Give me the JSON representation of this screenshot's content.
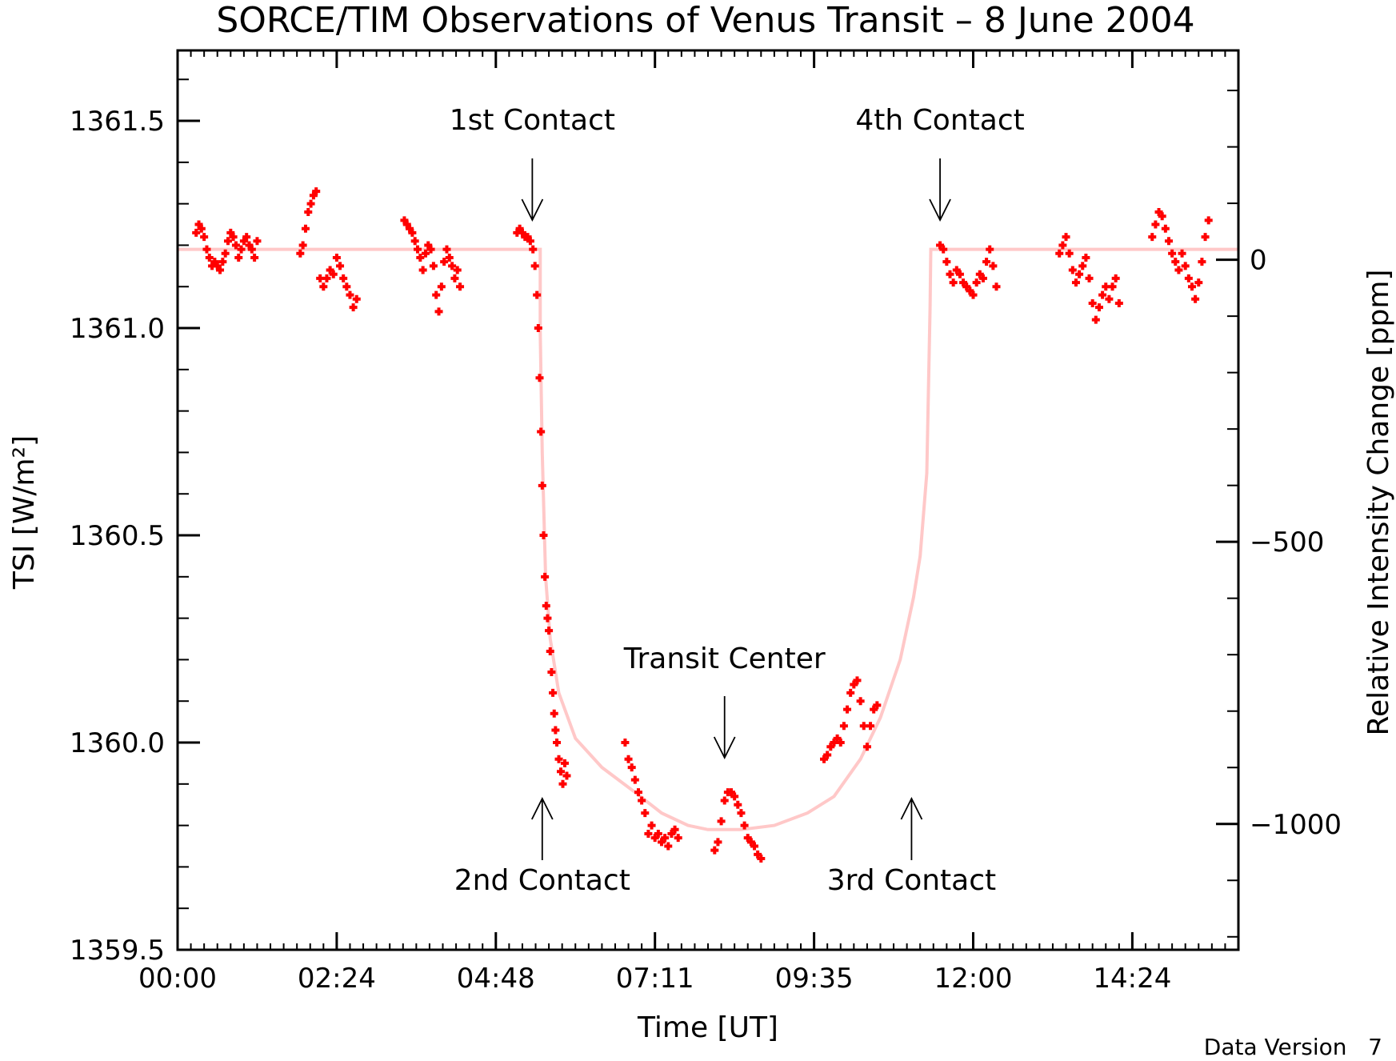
{
  "chart_data": {
    "type": "scatter",
    "title": "SORCE/TIM Observations of Venus Transit – 8 June 2004",
    "xlabel": "Time [UT]",
    "ylabel": "TSI [W/m²]",
    "y2label": "Relative Intensity Change [ppm]",
    "xlim": [
      0,
      16
    ],
    "ylim": [
      1359.5,
      1361.67
    ],
    "y2lim": [
      -1223,
      371
    ],
    "x_ticks": [
      {
        "value": 0,
        "label": "00:00"
      },
      {
        "value": 2.4,
        "label": "02:24"
      },
      {
        "value": 4.8,
        "label": "04:48"
      },
      {
        "value": 7.2,
        "label": "07:11"
      },
      {
        "value": 9.6,
        "label": "09:35"
      },
      {
        "value": 12.0,
        "label": "12:00"
      },
      {
        "value": 14.4,
        "label": "14:24"
      }
    ],
    "y_ticks": [
      {
        "value": 1359.5,
        "label": "1359.5"
      },
      {
        "value": 1360.0,
        "label": "1360.0"
      },
      {
        "value": 1360.5,
        "label": "1360.5"
      },
      {
        "value": 1361.0,
        "label": "1361.0"
      },
      {
        "value": 1361.5,
        "label": "1361.5"
      }
    ],
    "y2_ticks": [
      {
        "value": 0,
        "label": "0"
      },
      {
        "value": -500,
        "label": "−500"
      },
      {
        "value": -1000,
        "label": "−1000"
      }
    ],
    "grid": false,
    "colors": {
      "observations": "#ff0000",
      "model": "#ffc8c8"
    },
    "series": [
      {
        "kind": "observations",
        "points": [
          [
            0.28,
            1361.23
          ],
          [
            0.32,
            1361.25
          ],
          [
            0.36,
            1361.24
          ],
          [
            0.4,
            1361.22
          ],
          [
            0.44,
            1361.19
          ],
          [
            0.48,
            1361.17
          ],
          [
            0.52,
            1361.15
          ],
          [
            0.56,
            1361.16
          ],
          [
            0.6,
            1361.15
          ],
          [
            0.64,
            1361.14
          ],
          [
            0.68,
            1361.16
          ],
          [
            0.72,
            1361.18
          ],
          [
            0.76,
            1361.21
          ],
          [
            0.8,
            1361.23
          ],
          [
            0.84,
            1361.22
          ],
          [
            0.88,
            1361.2
          ],
          [
            0.92,
            1361.17
          ],
          [
            0.96,
            1361.19
          ],
          [
            1.0,
            1361.21
          ],
          [
            1.04,
            1361.22
          ],
          [
            1.08,
            1361.2
          ],
          [
            1.12,
            1361.19
          ],
          [
            1.16,
            1361.17
          ],
          [
            1.2,
            1361.21
          ],
          [
            1.85,
            1361.18
          ],
          [
            1.89,
            1361.2
          ],
          [
            1.93,
            1361.24
          ],
          [
            1.97,
            1361.28
          ],
          [
            2.01,
            1361.3
          ],
          [
            2.05,
            1361.32
          ],
          [
            2.09,
            1361.33
          ],
          [
            2.15,
            1361.12
          ],
          [
            2.2,
            1361.1
          ],
          [
            2.25,
            1361.12
          ],
          [
            2.3,
            1361.14
          ],
          [
            2.35,
            1361.13
          ],
          [
            2.4,
            1361.17
          ],
          [
            2.45,
            1361.15
          ],
          [
            2.5,
            1361.12
          ],
          [
            2.55,
            1361.1
          ],
          [
            2.6,
            1361.08
          ],
          [
            2.65,
            1361.05
          ],
          [
            2.7,
            1361.07
          ],
          [
            3.42,
            1361.26
          ],
          [
            3.46,
            1361.25
          ],
          [
            3.5,
            1361.24
          ],
          [
            3.54,
            1361.23
          ],
          [
            3.58,
            1361.21
          ],
          [
            3.62,
            1361.19
          ],
          [
            3.66,
            1361.17
          ],
          [
            3.7,
            1361.14
          ],
          [
            3.74,
            1361.18
          ],
          [
            3.78,
            1361.2
          ],
          [
            3.82,
            1361.19
          ],
          [
            3.86,
            1361.15
          ],
          [
            3.9,
            1361.08
          ],
          [
            3.94,
            1361.04
          ],
          [
            3.98,
            1361.1
          ],
          [
            4.02,
            1361.16
          ],
          [
            4.06,
            1361.19
          ],
          [
            4.1,
            1361.17
          ],
          [
            4.14,
            1361.15
          ],
          [
            4.18,
            1361.12
          ],
          [
            4.22,
            1361.14
          ],
          [
            4.26,
            1361.1
          ],
          [
            5.12,
            1361.23
          ],
          [
            5.16,
            1361.24
          ],
          [
            5.2,
            1361.23
          ],
          [
            5.24,
            1361.22
          ],
          [
            5.28,
            1361.22
          ],
          [
            5.32,
            1361.21
          ],
          [
            5.36,
            1361.19
          ],
          [
            5.39,
            1361.15
          ],
          [
            5.42,
            1361.08
          ],
          [
            5.44,
            1361.0
          ],
          [
            5.46,
            1360.88
          ],
          [
            5.48,
            1360.75
          ],
          [
            5.5,
            1360.62
          ],
          [
            5.52,
            1360.5
          ],
          [
            5.54,
            1360.4
          ],
          [
            5.56,
            1360.33
          ],
          [
            5.58,
            1360.3
          ],
          [
            5.6,
            1360.27
          ],
          [
            5.62,
            1360.22
          ],
          [
            5.64,
            1360.17
          ],
          [
            5.66,
            1360.12
          ],
          [
            5.68,
            1360.07
          ],
          [
            5.7,
            1360.03
          ],
          [
            5.72,
            1360.0
          ],
          [
            5.75,
            1359.96
          ],
          [
            5.78,
            1359.93
          ],
          [
            5.81,
            1359.9
          ],
          [
            5.84,
            1359.95
          ],
          [
            5.87,
            1359.92
          ],
          [
            6.75,
            1360.0
          ],
          [
            6.8,
            1359.96
          ],
          [
            6.85,
            1359.94
          ],
          [
            6.9,
            1359.91
          ],
          [
            6.95,
            1359.88
          ],
          [
            7.0,
            1359.86
          ],
          [
            7.05,
            1359.83
          ],
          [
            7.1,
            1359.78
          ],
          [
            7.15,
            1359.8
          ],
          [
            7.2,
            1359.77
          ],
          [
            7.25,
            1359.78
          ],
          [
            7.3,
            1359.76
          ],
          [
            7.35,
            1359.77
          ],
          [
            7.4,
            1359.75
          ],
          [
            7.45,
            1359.78
          ],
          [
            7.5,
            1359.79
          ],
          [
            7.55,
            1359.77
          ],
          [
            8.1,
            1359.74
          ],
          [
            8.15,
            1359.76
          ],
          [
            8.2,
            1359.81
          ],
          [
            8.25,
            1359.86
          ],
          [
            8.3,
            1359.88
          ],
          [
            8.35,
            1359.88
          ],
          [
            8.4,
            1359.87
          ],
          [
            8.45,
            1359.85
          ],
          [
            8.5,
            1359.83
          ],
          [
            8.55,
            1359.8
          ],
          [
            8.6,
            1359.77
          ],
          [
            8.65,
            1359.76
          ],
          [
            8.7,
            1359.75
          ],
          [
            8.75,
            1359.73
          ],
          [
            8.8,
            1359.72
          ],
          [
            9.75,
            1359.96
          ],
          [
            9.8,
            1359.97
          ],
          [
            9.85,
            1359.99
          ],
          [
            9.9,
            1360.0
          ],
          [
            9.95,
            1360.01
          ],
          [
            10.0,
            1360.0
          ],
          [
            10.05,
            1360.04
          ],
          [
            10.1,
            1360.08
          ],
          [
            10.15,
            1360.12
          ],
          [
            10.2,
            1360.14
          ],
          [
            10.25,
            1360.15
          ],
          [
            10.3,
            1360.1
          ],
          [
            10.35,
            1360.04
          ],
          [
            10.4,
            1359.99
          ],
          [
            10.45,
            1360.04
          ],
          [
            10.5,
            1360.08
          ],
          [
            10.55,
            1360.09
          ],
          [
            11.5,
            1361.2
          ],
          [
            11.55,
            1361.19
          ],
          [
            11.6,
            1361.16
          ],
          [
            11.65,
            1361.13
          ],
          [
            11.7,
            1361.11
          ],
          [
            11.75,
            1361.14
          ],
          [
            11.8,
            1361.13
          ],
          [
            11.85,
            1361.11
          ],
          [
            11.9,
            1361.1
          ],
          [
            11.95,
            1361.09
          ],
          [
            12.0,
            1361.08
          ],
          [
            12.05,
            1361.11
          ],
          [
            12.1,
            1361.13
          ],
          [
            12.15,
            1361.12
          ],
          [
            12.2,
            1361.16
          ],
          [
            12.25,
            1361.19
          ],
          [
            12.3,
            1361.15
          ],
          [
            12.35,
            1361.1
          ],
          [
            13.3,
            1361.18
          ],
          [
            13.35,
            1361.2
          ],
          [
            13.4,
            1361.22
          ],
          [
            13.45,
            1361.18
          ],
          [
            13.5,
            1361.14
          ],
          [
            13.55,
            1361.11
          ],
          [
            13.6,
            1361.13
          ],
          [
            13.65,
            1361.15
          ],
          [
            13.7,
            1361.17
          ],
          [
            13.75,
            1361.12
          ],
          [
            13.8,
            1361.06
          ],
          [
            13.85,
            1361.02
          ],
          [
            13.9,
            1361.05
          ],
          [
            13.95,
            1361.08
          ],
          [
            14.0,
            1361.1
          ],
          [
            14.05,
            1361.07
          ],
          [
            14.1,
            1361.1
          ],
          [
            14.15,
            1361.12
          ],
          [
            14.2,
            1361.06
          ],
          [
            14.7,
            1361.22
          ],
          [
            14.75,
            1361.25
          ],
          [
            14.8,
            1361.28
          ],
          [
            14.85,
            1361.27
          ],
          [
            14.9,
            1361.24
          ],
          [
            14.95,
            1361.21
          ],
          [
            15.0,
            1361.18
          ],
          [
            15.05,
            1361.16
          ],
          [
            15.1,
            1361.14
          ],
          [
            15.15,
            1361.18
          ],
          [
            15.2,
            1361.15
          ],
          [
            15.25,
            1361.12
          ],
          [
            15.3,
            1361.1
          ],
          [
            15.35,
            1361.07
          ],
          [
            15.4,
            1361.11
          ],
          [
            15.45,
            1361.16
          ],
          [
            15.5,
            1361.22
          ],
          [
            15.55,
            1361.26
          ]
        ]
      },
      {
        "kind": "model",
        "points": [
          [
            0,
            1361.19
          ],
          [
            5.47,
            1361.19
          ],
          [
            5.47,
            1360.99
          ],
          [
            5.5,
            1360.7
          ],
          [
            5.55,
            1360.4
          ],
          [
            5.62,
            1360.25
          ],
          [
            5.75,
            1360.12
          ],
          [
            6.0,
            1360.01
          ],
          [
            6.4,
            1359.94
          ],
          [
            6.9,
            1359.88
          ],
          [
            7.3,
            1359.83
          ],
          [
            7.7,
            1359.8
          ],
          [
            8.0,
            1359.79
          ],
          [
            8.5,
            1359.79
          ],
          [
            9.0,
            1359.8
          ],
          [
            9.5,
            1359.83
          ],
          [
            9.9,
            1359.87
          ],
          [
            10.3,
            1359.96
          ],
          [
            10.6,
            1360.06
          ],
          [
            10.9,
            1360.2
          ],
          [
            11.1,
            1360.35
          ],
          [
            11.2,
            1360.45
          ],
          [
            11.3,
            1360.65
          ],
          [
            11.35,
            1361.05
          ],
          [
            11.36,
            1361.19
          ],
          [
            16,
            1361.19
          ]
        ]
      }
    ],
    "annotations": [
      {
        "text": "1st Contact",
        "x": 5.35,
        "side": "top"
      },
      {
        "text": "4th Contact",
        "x": 11.5,
        "side": "top"
      },
      {
        "text": "Transit Center",
        "x": 8.25,
        "side": "center"
      },
      {
        "text": "2nd Contact",
        "x": 5.5,
        "side": "bottom"
      },
      {
        "text": "3rd Contact",
        "x": 11.07,
        "side": "bottom"
      }
    ],
    "footer": "Data Version   7"
  }
}
